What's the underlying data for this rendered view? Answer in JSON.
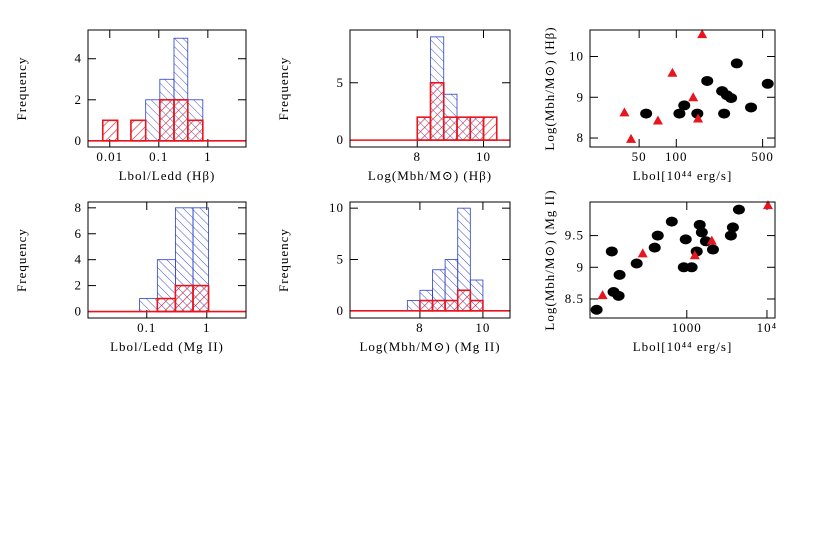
{
  "chart_data": [
    {
      "type": "histogram",
      "xlabel": "Lbol/Ledd (Hβ)",
      "ylabel": "Frequency",
      "xlog": true,
      "xlim": [
        0.0036,
        6
      ],
      "xticks": [
        0.01,
        0.1,
        1
      ],
      "ylim": [
        -0.3,
        5.4
      ],
      "yticks": [
        0,
        2,
        4
      ],
      "bins": [
        0.0072,
        0.0145,
        0.027,
        0.054,
        0.105,
        0.204,
        0.39,
        0.79
      ],
      "series": [
        {
          "color": "#2b3fc7",
          "hatch": "\\",
          "values": [
            0,
            0,
            0,
            2,
            3,
            5,
            2
          ]
        },
        {
          "color": "#e8141e",
          "hatch": "/",
          "values": [
            1,
            0,
            1,
            0,
            2,
            2,
            1
          ]
        }
      ]
    },
    {
      "type": "histogram",
      "xlabel": "Log(Mbh/M⊙) (Hβ)",
      "ylabel": "Frequency",
      "xlog": false,
      "xlim": [
        5.97,
        10.8
      ],
      "xticks": [
        8,
        10
      ],
      "ylim": [
        -0.6,
        9.6
      ],
      "yticks": [
        0,
        5
      ],
      "bins": [
        8.0,
        8.4,
        8.8,
        9.2,
        9.6,
        10.0,
        10.4
      ],
      "series": [
        {
          "color": "#2b3fc7",
          "hatch": "\\",
          "values": [
            2,
            9,
            4,
            2,
            2,
            0
          ]
        },
        {
          "color": "#e8141e",
          "hatch": "/",
          "values": [
            2,
            5,
            2,
            2,
            2,
            2
          ]
        }
      ]
    },
    {
      "type": "scatter",
      "xlabel": "Lbol[10⁴⁴ erg/s]",
      "ylabel": "Log(Mbh/M⊙) (Hβ)",
      "xlog": true,
      "xlim": [
        20,
        630
      ],
      "xticks": [
        50,
        100,
        500
      ],
      "ylim": [
        7.78,
        10.65
      ],
      "yticks": [
        8,
        9,
        10
      ],
      "series": [
        {
          "color": "#000000",
          "marker": "circle",
          "x": [
            57,
            106,
            116,
            148,
            178,
            235,
            244,
            257,
            278,
            309,
            403,
            550
          ],
          "values": [
            8.6,
            8.6,
            8.8,
            8.6,
            9.4,
            9.15,
            8.6,
            9.05,
            8.98,
            9.83,
            8.75,
            9.33
          ]
        },
        {
          "color": "#e8141e",
          "marker": "triangle",
          "x": [
            38,
            43,
            71,
            93,
            137,
            150,
            162
          ],
          "values": [
            8.63,
            7.98,
            8.43,
            9.6,
            9.0,
            8.48,
            10.55
          ]
        }
      ]
    },
    {
      "type": "histogram",
      "xlabel": "Lbol/Ledd (Mg II)",
      "ylabel": "Frequency",
      "xlog": true,
      "xlim": [
        0.0105,
        4.5
      ],
      "xticks": [
        0.1,
        1
      ],
      "ylim": [
        -0.5,
        8.45
      ],
      "yticks": [
        0,
        2,
        4,
        6,
        8
      ],
      "bins": [
        0.076,
        0.15,
        0.3,
        0.59,
        1.07
      ],
      "series": [
        {
          "color": "#2b3fc7",
          "hatch": "\\",
          "values": [
            1,
            4,
            8,
            8
          ]
        },
        {
          "color": "#e8141e",
          "hatch": "/",
          "values": [
            0,
            1,
            2,
            2
          ]
        }
      ]
    },
    {
      "type": "histogram",
      "xlabel": "Log(Mbh/M⊙) (Mg II)",
      "ylabel": "Frequency",
      "xlog": false,
      "xlim": [
        5.78,
        10.86
      ],
      "xticks": [
        8,
        10
      ],
      "ylim": [
        -0.7,
        10.6
      ],
      "yticks": [
        0,
        5,
        10
      ],
      "bins": [
        7.6,
        8.0,
        8.4,
        8.8,
        9.2,
        9.6,
        10.0
      ],
      "series": [
        {
          "color": "#2b3fc7",
          "hatch": "\\",
          "values": [
            1,
            2,
            4,
            5,
            10,
            3
          ]
        },
        {
          "color": "#e8141e",
          "hatch": "/",
          "values": [
            0,
            1,
            1,
            1,
            2,
            1
          ]
        }
      ]
    },
    {
      "type": "scatter",
      "xlabel": "Lbol[10⁴⁴ erg/s]",
      "ylabel": "Log(Mbh/M⊙) (Mg II)",
      "xlog": true,
      "xlim": [
        62,
        12600
      ],
      "xticks": [
        1000,
        {
          "value": 10000,
          "label": "10⁴"
        }
      ],
      "ylim": [
        8.2,
        10.03
      ],
      "yticks": [
        8.5,
        9,
        9.5
      ],
      "series": [
        {
          "color": "#000000",
          "marker": "circle",
          "x": [
            75,
            116,
            122,
            141,
            145,
            237,
            398,
            434,
            650,
            970,
            917,
            1150,
            1330,
            1450,
            1540,
            1730,
            2120,
            3550,
            3760,
            4470
          ],
          "values": [
            8.33,
            9.25,
            8.61,
            8.55,
            8.88,
            9.06,
            9.31,
            9.5,
            9.72,
            9.44,
            9.0,
            9.0,
            9.25,
            9.67,
            9.55,
            9.41,
            9.28,
            9.5,
            9.63,
            9.91
          ]
        },
        {
          "color": "#e8141e",
          "marker": "triangle",
          "x": [
            89,
            282,
            1260,
            2050,
            10300
          ],
          "values": [
            8.56,
            9.22,
            9.19,
            9.42,
            9.98
          ]
        }
      ]
    }
  ]
}
